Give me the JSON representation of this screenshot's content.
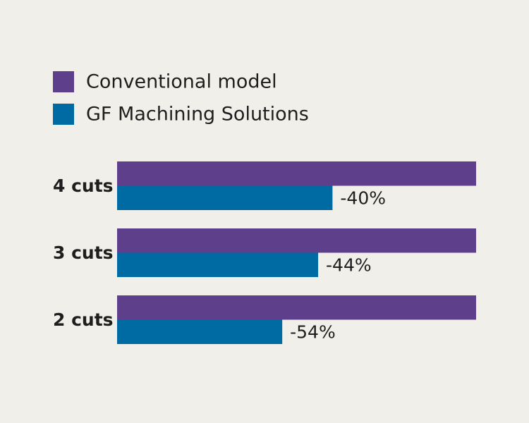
{
  "colors": {
    "background": "#f1efe9",
    "conventional": "#5e3f8c",
    "gf": "#006aa2"
  },
  "chart_data": {
    "type": "bar",
    "orientation": "horizontal",
    "categories": [
      "4 cuts",
      "3 cuts",
      "2 cuts"
    ],
    "series": [
      {
        "name": "Conventional model",
        "values": [
          100,
          100,
          100
        ],
        "color": "#5e3f8c"
      },
      {
        "name": "GF Machining Solutions",
        "values": [
          60,
          56,
          46
        ],
        "color": "#006aa2"
      }
    ],
    "data_labels": [
      "-40%",
      "-44%",
      "-54%"
    ],
    "xlim": [
      0,
      100
    ],
    "grid": false,
    "legend_position": "top-left",
    "title": "",
    "xlabel": "",
    "ylabel": ""
  }
}
